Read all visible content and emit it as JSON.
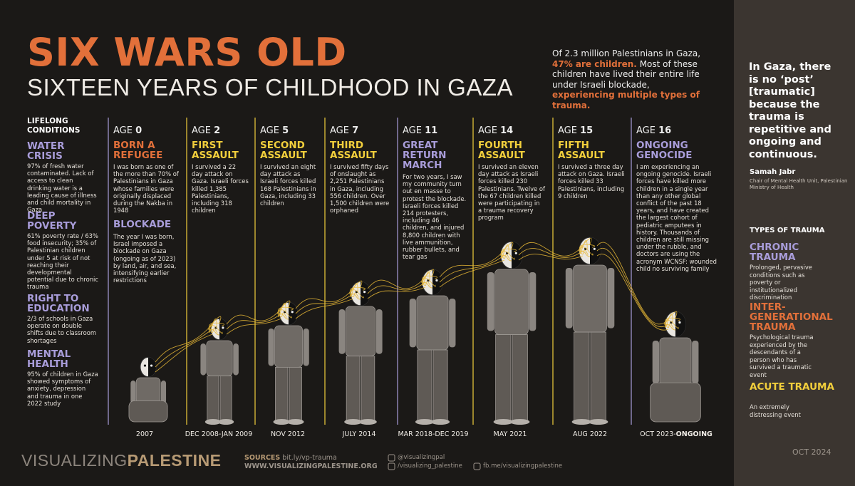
{
  "header": {
    "title": "SIX WARS OLD",
    "subtitle": "SIXTEEN YEARS OF CHILDHOOD IN GAZA"
  },
  "intro": [
    "Of 2.3 million Palestinians in Gaza,",
    "47% are children.",
    "Most of these children have lived their entire life under Israeli blockade,",
    "experiencing multiple types of trauma."
  ],
  "lifelong": {
    "heading": "LIFELONG CONDITIONS",
    "items": [
      {
        "title": "WATER CRISIS",
        "text": "97% of fresh water contaminated. Lack of access to clean drinking water is a leading cause of illness and child mortality in Gaza"
      },
      {
        "title": "DEEP POVERTY",
        "text": "61% poverty rate / 63% food insecurity; 35% of Palestinian children under 5 at risk of not reaching their developmental potential due to chronic trauma"
      },
      {
        "title": "RIGHT TO EDUCATION",
        "text": "2/3 of schools in Gaza operate on double shifts due to classroom shortages"
      },
      {
        "title": "MENTAL HEALTH",
        "text": "95% of children in Gaza showed symptoms of anxiety, depression and trauma in one 2022 study"
      }
    ]
  },
  "age_label": "AGE",
  "timeline": [
    {
      "age": 0,
      "title": "BORN A REFUGEE",
      "text": "I was born as one of the more than 70% of Palestinians in Gaza whose families were originally displaced during the Nakba in 1948",
      "extra_title": "BLOCKADE",
      "extra_text": "The year I was born, Israel imposed a blockade on Gaza (ongoing as of 2023) by land, air, and sea, intensifying earlier restrictions",
      "date": "2007"
    },
    {
      "age": 2,
      "title": "FIRST ASSAULT",
      "text": "I survived a 22 day attack on Gaza. Israeli forces killed 1,385 Palestinians, including 318 children",
      "date": "DEC 2008-JAN 2009"
    },
    {
      "age": 5,
      "title": "SECOND ASSAULT",
      "text": "I survived an eight day attack as Israeli forces killed 168 Palestinians in Gaza, including 33 children",
      "date": "NOV 2012"
    },
    {
      "age": 7,
      "title": "THIRD ASSAULT",
      "text": "I survived fifty days of onslaught as 2,251 Palestinians in Gaza, including 556 children. Over 1,500 children were orphaned",
      "date": "JULY 2014"
    },
    {
      "age": 11,
      "title": "GREAT RETURN MARCH",
      "text": "For two years, I saw my community turn out en masse to protest the blockade. Israeli forces killed 214 protesters, including 46 children, and injured 8,800 children with live ammunition, rubber bullets, and tear gas",
      "date": "MAR 2018-DEC 2019"
    },
    {
      "age": 14,
      "title": "FOURTH ASSAULT",
      "text": "I survived an eleven day attack as Israeli forces killed 230 Palestinians. Twelve of the 67 children killed were participating in a trauma recovery program",
      "date": "MAY 2021"
    },
    {
      "age": 15,
      "title": "FIFTH ASSAULT",
      "text": "I survived a three day attack on Gaza. Israeli forces killed 33 Palestinians, including 9 children",
      "date": "AUG 2022"
    },
    {
      "age": 16,
      "title": "ONGOING GENOCIDE",
      "text": "I am experiencing an ongoing genocide. Israeli forces have killed more children in a single year than any other global conflict of the past 18 years, and have created the largest cohort of pediatric amputees in history. Thousands of children are still missing under the rubble, and doctors are using the acronym WCNSF: wounded child no surviving family",
      "date": "OCT 2023-",
      "date_bold": "ONGOING"
    }
  ],
  "sidebar": {
    "quote": "In Gaza, there is no ‘post’ [traumatic] because the trauma is repetitive and ongoing and continuous.",
    "author": "Samah Jabr",
    "role": "Chair of Mental Health Unit, Palestinian Ministry of Health",
    "types_heading": "TYPES OF TRAUMA",
    "types": [
      {
        "title": "CHRONIC TRAUMA",
        "text": "Prolonged, pervasive conditions such as poverty or institutionalized discrimination"
      },
      {
        "title": "INTER-GENERATIONAL TRAUMA",
        "text": "Psychological trauma experienced by the descendants of a person who has survived a traumatic event"
      },
      {
        "title": "ACUTE TRAUMA",
        "text": "An extremely distressing event"
      }
    ],
    "date": "OCT 2024"
  },
  "footer": {
    "brand_light": "VISUALIZING",
    "brand_bold": "PALESTINE",
    "sources_label": "SOURCES",
    "sources_link": "bit.ly/vp-trauma",
    "website": "WWW.VISUALIZINGPALESTINE.ORG",
    "twitter": "@visualizingpal",
    "instagram": "/visualizing_palestine",
    "facebook": "fb.me/visualizingpalestine"
  }
}
